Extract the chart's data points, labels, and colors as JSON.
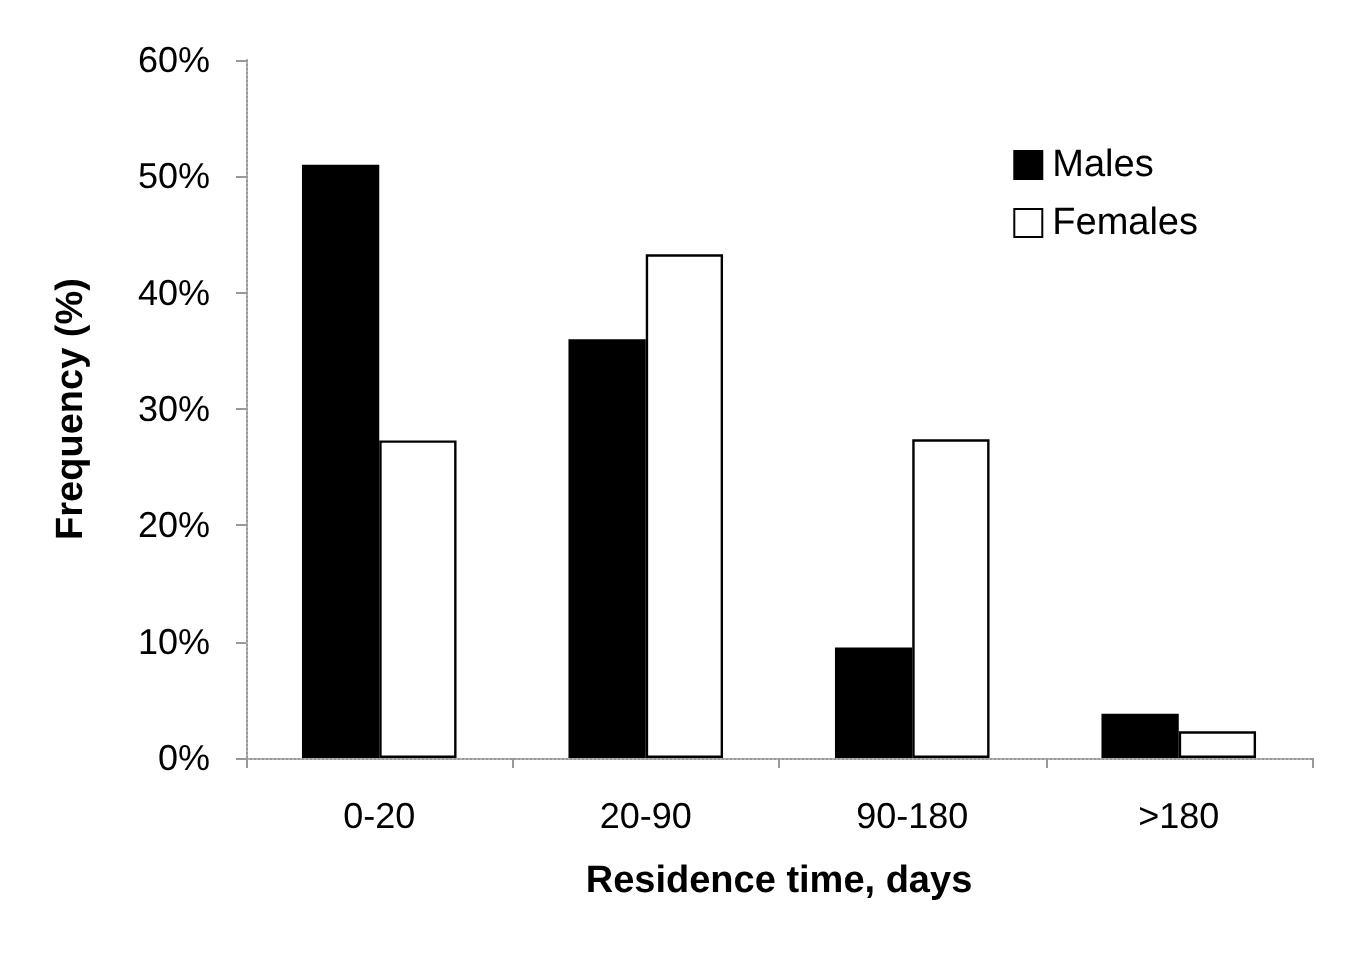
{
  "chart_data": {
    "type": "bar",
    "xlabel": "Residence time, days",
    "ylabel": "Frequency (%)",
    "categories": [
      "0-20",
      "20-90",
      "90-180",
      ">180"
    ],
    "series": [
      {
        "name": "Males",
        "color": "#000000",
        "values": [
          51,
          36,
          9.5,
          3.8
        ]
      },
      {
        "name": "Females",
        "color": "#ffffff",
        "values": [
          27.3,
          43.3,
          27.4,
          2.3
        ]
      }
    ],
    "ylim": [
      0,
      60
    ],
    "yticks": [
      {
        "value": 0,
        "label": "0%"
      },
      {
        "value": 10,
        "label": "10%"
      },
      {
        "value": 20,
        "label": "20%"
      },
      {
        "value": 30,
        "label": "30%"
      },
      {
        "value": 40,
        "label": "40%"
      },
      {
        "value": 50,
        "label": "50%"
      },
      {
        "value": 60,
        "label": "60%"
      }
    ],
    "grid": false,
    "legend": "top right"
  }
}
